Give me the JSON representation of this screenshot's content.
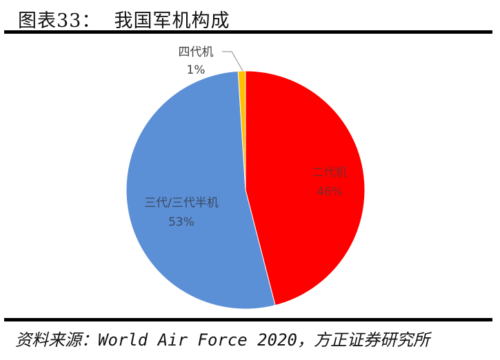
{
  "header": {
    "title": "图表33：  我国军机构成"
  },
  "footer": {
    "source": "资料来源：World Air Force 2020，方正证券研究所"
  },
  "chart_data": {
    "type": "pie",
    "title": "我国军机构成",
    "categories": [
      "二代机",
      "三代/三代半机",
      "四代机"
    ],
    "values": [
      46,
      53,
      1
    ],
    "unit": "%",
    "colors": [
      "#FF0000",
      "#5B8FD6",
      "#FFC000"
    ],
    "start_angle": "12 o'clock, clockwise",
    "labels": [
      {
        "name": "二代机",
        "pct": "46%"
      },
      {
        "name": "三代/三代半机",
        "pct": "53%"
      },
      {
        "name": "四代机",
        "pct": "1%"
      }
    ],
    "legend": "none (data labels)"
  }
}
